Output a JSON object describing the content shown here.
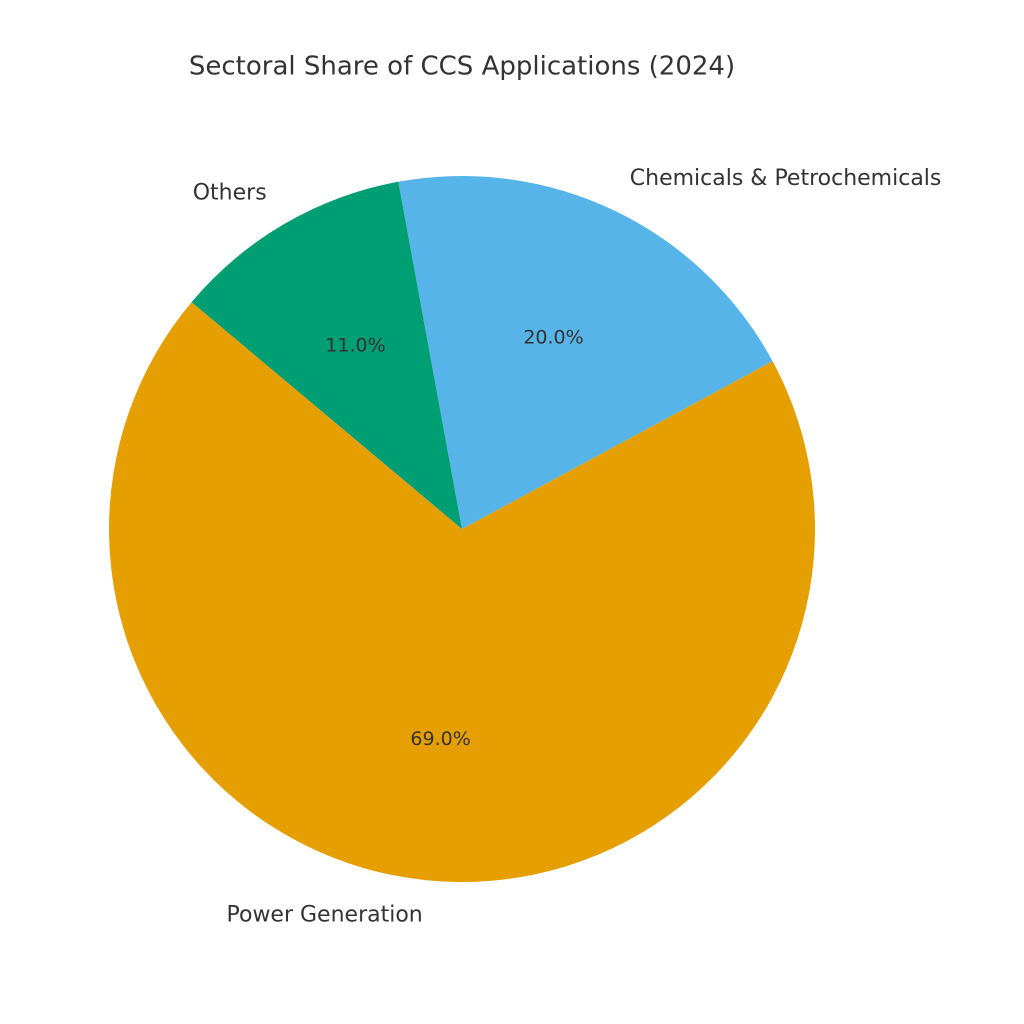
{
  "chart_data": {
    "type": "pie",
    "title": "Sectoral Share of CCS Applications (2024)",
    "categories": [
      "Power Generation",
      "Chemicals & Petrochemicals",
      "Others"
    ],
    "values": [
      69,
      20,
      11
    ],
    "value_labels": [
      "69.0%",
      "20.0%",
      "11.0%"
    ],
    "colors": [
      "#E69F00",
      "#56B4E9",
      "#009E73"
    ]
  }
}
